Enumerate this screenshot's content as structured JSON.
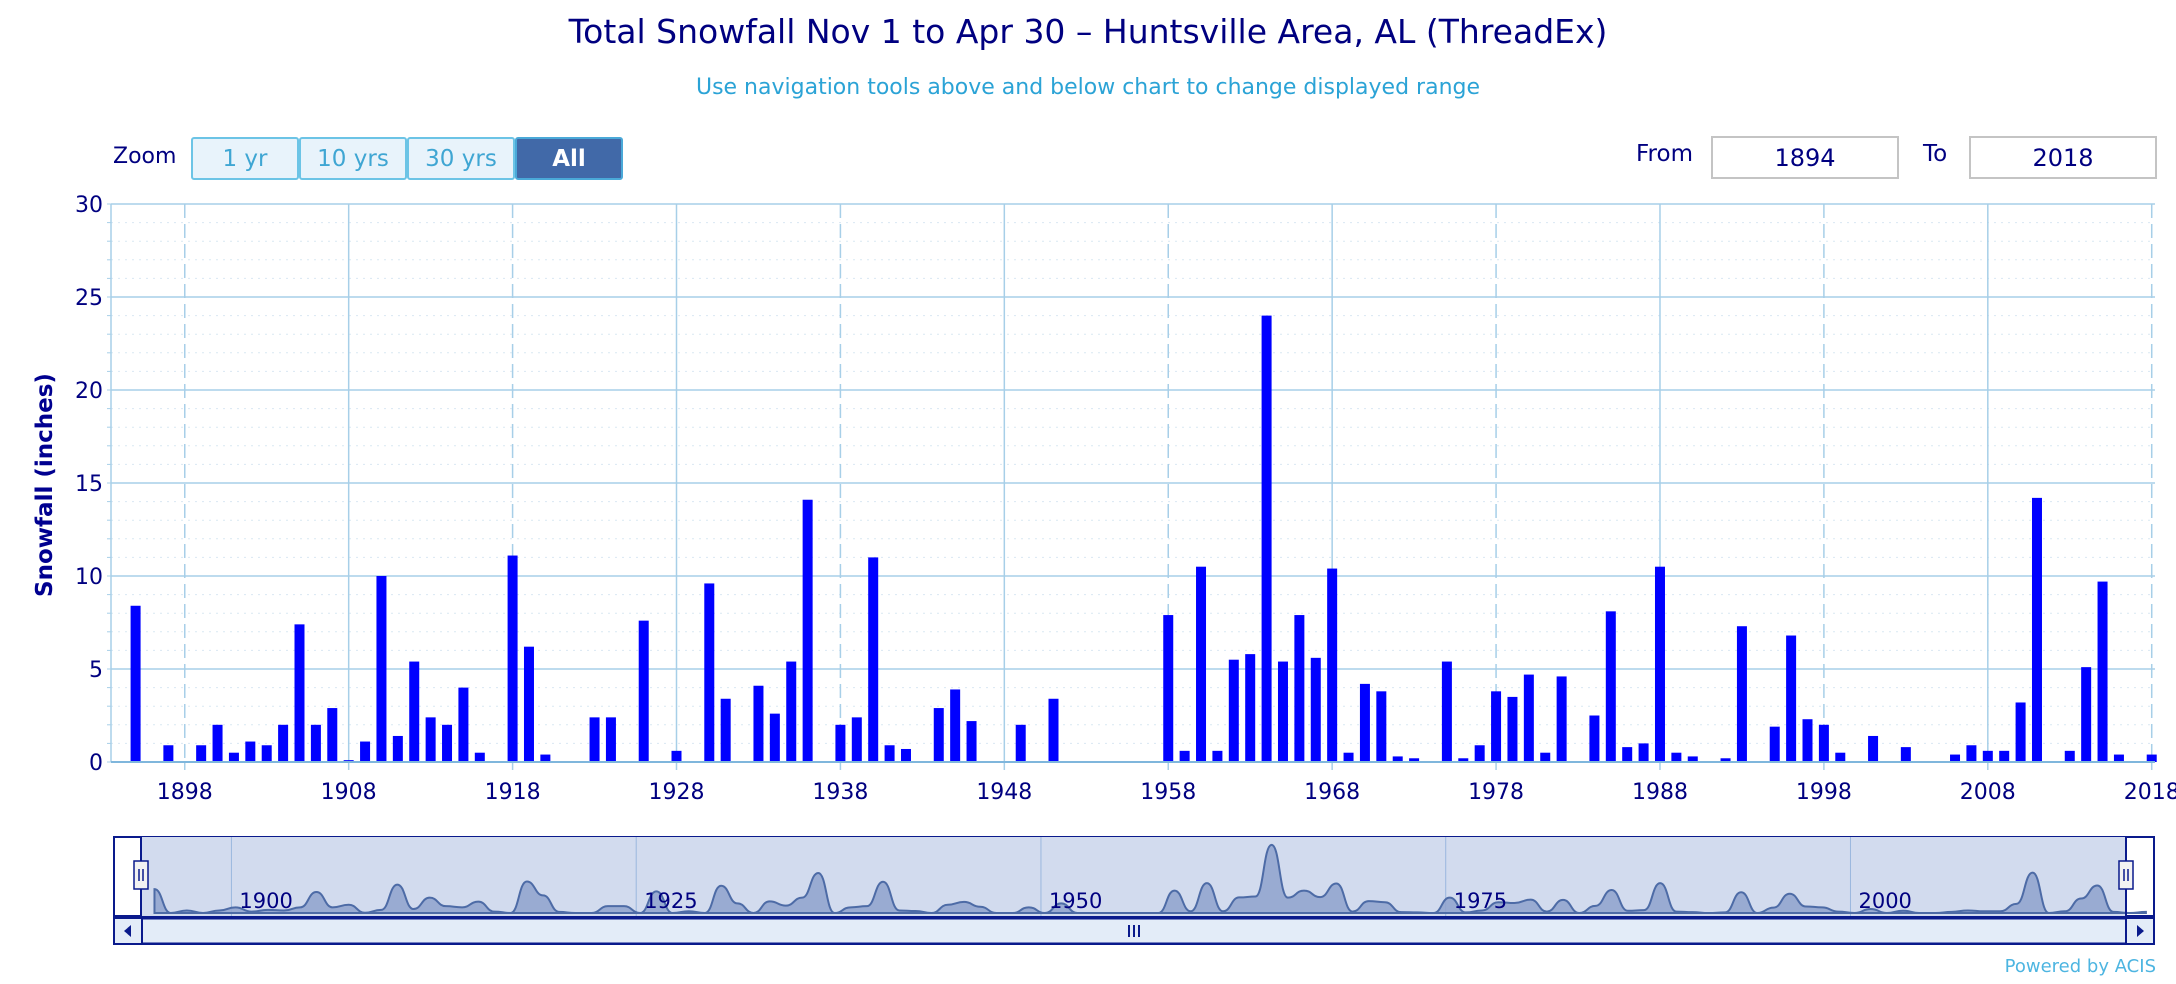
{
  "title": "Total Snowfall Nov 1 to Apr 30 – Huntsville Area, AL (ThreadEx)",
  "subtitle": "Use navigation tools above and below chart to change displayed range",
  "zoom": {
    "label": "Zoom",
    "buttons": [
      {
        "label": "1 yr",
        "active": false
      },
      {
        "label": "10 yrs",
        "active": false
      },
      {
        "label": "30 yrs",
        "active": false
      },
      {
        "label": "All",
        "active": true
      }
    ]
  },
  "range": {
    "from_label": "From",
    "from_value": "1894",
    "to_label": "To",
    "to_value": "2018"
  },
  "credit": "Powered by ACIS",
  "colors": {
    "bar": "#0000ff",
    "grid": "#a7cfe8",
    "text": "#000080",
    "navigator_fill": "#8fa2cc",
    "navigator_line": "#4d6ba6"
  },
  "navigator": {
    "labels": [
      "1900",
      "1925",
      "1950",
      "1975",
      "2000"
    ]
  },
  "chart_data": {
    "type": "bar",
    "title": "Total Snowfall Nov 1 to Apr 30 – Huntsville Area, AL (ThreadEx)",
    "ylabel": "Snowfall (inches)",
    "xlabel": "",
    "xlim": [
      1894,
      2018
    ],
    "ylim": [
      0,
      30
    ],
    "yticks": [
      0,
      5,
      10,
      15,
      20,
      25,
      30
    ],
    "xticks": [
      1898,
      1908,
      1918,
      1928,
      1938,
      1948,
      1958,
      1968,
      1978,
      1988,
      1998,
      2008,
      2018
    ],
    "grid": true,
    "legend": "none",
    "x": [
      1895,
      1897,
      1899,
      1900,
      1901,
      1902,
      1903,
      1904,
      1905,
      1906,
      1907,
      1908,
      1909,
      1910,
      1911,
      1912,
      1913,
      1914,
      1915,
      1916,
      1918,
      1919,
      1920,
      1923,
      1924,
      1926,
      1928,
      1930,
      1931,
      1933,
      1934,
      1935,
      1936,
      1938,
      1939,
      1940,
      1941,
      1942,
      1944,
      1945,
      1946,
      1949,
      1951,
      1958,
      1959,
      1960,
      1961,
      1962,
      1963,
      1964,
      1965,
      1966,
      1967,
      1968,
      1969,
      1970,
      1971,
      1972,
      1973,
      1975,
      1976,
      1977,
      1978,
      1979,
      1980,
      1981,
      1982,
      1984,
      1985,
      1986,
      1987,
      1988,
      1989,
      1990,
      1992,
      1993,
      1995,
      1996,
      1997,
      1998,
      1999,
      2001,
      2003,
      2006,
      2007,
      2008,
      2009,
      2010,
      2011,
      2013,
      2014,
      2015,
      2016,
      2018
    ],
    "values": [
      8.4,
      0.9,
      0.9,
      2.0,
      0.5,
      1.1,
      0.9,
      2.0,
      7.4,
      2.0,
      2.9,
      0.1,
      1.1,
      10.0,
      1.4,
      5.4,
      2.4,
      2.0,
      4.0,
      0.5,
      11.1,
      6.2,
      0.4,
      2.4,
      2.4,
      7.6,
      0.6,
      9.6,
      3.4,
      4.1,
      2.6,
      5.4,
      14.1,
      2.0,
      2.4,
      11.0,
      0.9,
      0.7,
      2.9,
      3.9,
      2.2,
      2.0,
      3.4,
      7.9,
      0.6,
      10.5,
      0.6,
      5.5,
      5.8,
      24.0,
      5.4,
      7.9,
      5.6,
      10.4,
      0.5,
      4.2,
      3.8,
      0.3,
      0.2,
      5.4,
      0.2,
      0.9,
      3.8,
      3.5,
      4.7,
      0.5,
      4.6,
      2.5,
      8.1,
      0.8,
      1.0,
      10.5,
      0.5,
      0.3,
      0.2,
      7.3,
      1.9,
      6.8,
      2.3,
      2.0,
      0.5,
      1.4,
      0.8,
      0.4,
      0.9,
      0.6,
      0.6,
      3.2,
      14.2,
      0.6,
      5.1,
      9.7,
      0.4,
      0.4
    ]
  }
}
